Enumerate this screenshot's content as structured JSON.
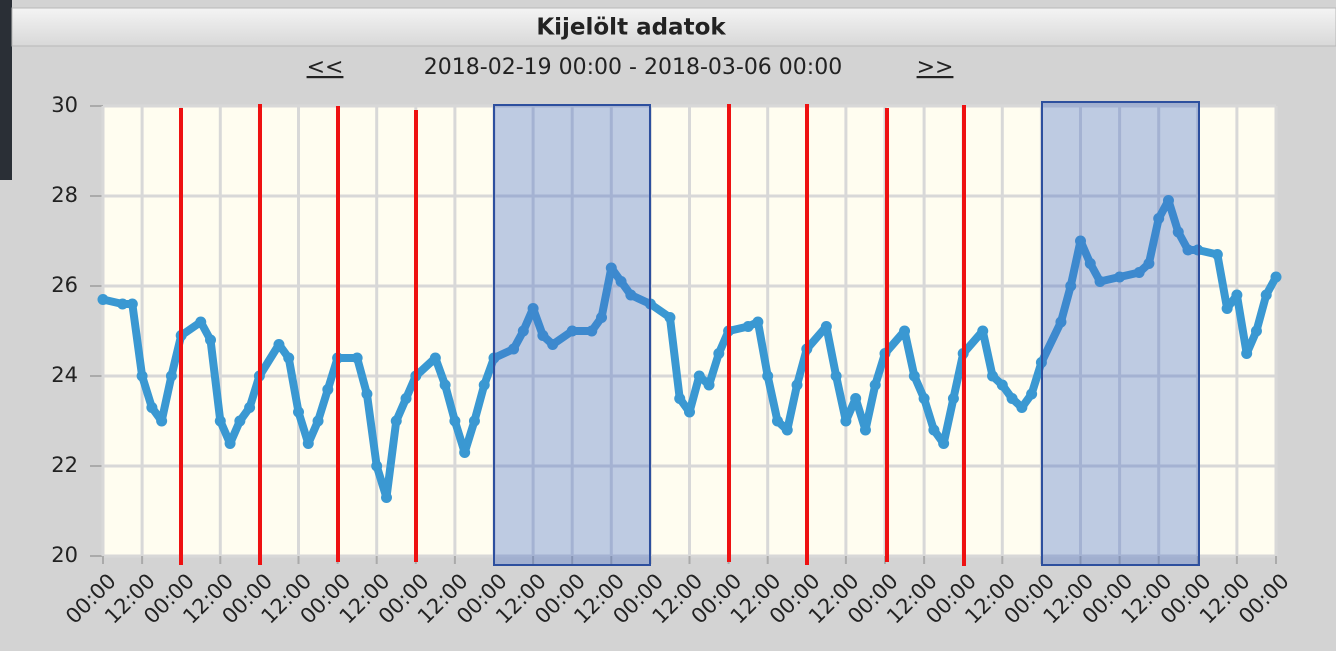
{
  "chart_data": {
    "type": "line",
    "title": "Kijelölt adatok",
    "nav_prev": "<<",
    "subtitle": "2018-02-19 00:00 - 2018-03-06 00:00",
    "nav_next": ">>",
    "color": "#3a98d2",
    "grid": true,
    "ylim": [
      20,
      30
    ],
    "yticks": [
      20,
      22,
      24,
      26,
      28,
      30
    ],
    "xlim": [
      0,
      360
    ],
    "xticks": [
      {
        "value": 0,
        "label": "00:00"
      },
      {
        "value": 12,
        "label": "12:00"
      },
      {
        "value": 24,
        "label": "00:00"
      },
      {
        "value": 36,
        "label": "12:00"
      },
      {
        "value": 48,
        "label": "00:00"
      },
      {
        "value": 60,
        "label": "12:00"
      },
      {
        "value": 72,
        "label": "00:00"
      },
      {
        "value": 84,
        "label": "12:00"
      },
      {
        "value": 96,
        "label": "00:00"
      },
      {
        "value": 108,
        "label": "12:00"
      },
      {
        "value": 120,
        "label": "00:00"
      },
      {
        "value": 132,
        "label": "12:00"
      },
      {
        "value": 144,
        "label": "00:00"
      },
      {
        "value": 156,
        "label": "12:00"
      },
      {
        "value": 168,
        "label": "00:00"
      },
      {
        "value": 180,
        "label": "12:00"
      },
      {
        "value": 192,
        "label": "00:00"
      },
      {
        "value": 204,
        "label": "12:00"
      },
      {
        "value": 216,
        "label": "00:00"
      },
      {
        "value": 228,
        "label": "12:00"
      },
      {
        "value": 240,
        "label": "00:00"
      },
      {
        "value": 252,
        "label": "12:00"
      },
      {
        "value": 264,
        "label": "00:00"
      },
      {
        "value": 276,
        "label": "12:00"
      },
      {
        "value": 288,
        "label": "00:00"
      },
      {
        "value": 300,
        "label": "12:00"
      },
      {
        "value": 312,
        "label": "00:00"
      },
      {
        "value": 324,
        "label": "12:00"
      },
      {
        "value": 336,
        "label": "00:00"
      },
      {
        "value": 348,
        "label": "12:00"
      },
      {
        "value": 360,
        "label": "00:00"
      }
    ],
    "x": [
      0,
      6,
      9,
      12,
      15,
      18,
      21,
      24,
      30,
      33,
      36,
      39,
      42,
      45,
      48,
      54,
      57,
      60,
      63,
      66,
      69,
      72,
      78,
      81,
      84,
      87,
      90,
      93,
      96,
      102,
      105,
      108,
      111,
      114,
      117,
      120,
      126,
      129,
      132,
      135,
      138,
      144,
      150,
      153,
      156,
      159,
      162,
      168,
      174,
      177,
      180,
      183,
      186,
      189,
      192,
      198,
      201,
      204,
      207,
      210,
      213,
      216,
      222,
      225,
      228,
      231,
      234,
      237,
      240,
      246,
      249,
      252,
      255,
      258,
      261,
      264,
      270,
      273,
      276,
      279,
      282,
      285,
      288,
      294,
      297,
      300,
      303,
      306,
      312,
      318,
      321,
      324,
      327,
      330,
      333,
      336,
      342,
      345,
      348,
      351,
      354,
      357,
      360
    ],
    "values": [
      25.7,
      25.6,
      25.6,
      24.0,
      23.3,
      23.0,
      24.0,
      24.9,
      25.2,
      24.8,
      23.0,
      22.5,
      23.0,
      23.3,
      24.0,
      24.7,
      24.4,
      23.2,
      22.5,
      23.0,
      23.7,
      24.4,
      24.4,
      23.6,
      22.0,
      21.3,
      23.0,
      23.5,
      24.0,
      24.4,
      23.8,
      23.0,
      22.3,
      23.0,
      23.8,
      24.4,
      24.6,
      25.0,
      25.5,
      24.9,
      24.7,
      25.0,
      25.0,
      25.3,
      26.4,
      26.1,
      25.8,
      25.6,
      25.3,
      23.5,
      23.2,
      24.0,
      23.8,
      24.5,
      25.0,
      25.1,
      25.2,
      24.0,
      23.0,
      22.8,
      23.8,
      24.6,
      25.1,
      24.0,
      23.0,
      23.5,
      22.8,
      23.8,
      24.5,
      25.0,
      24.0,
      23.5,
      22.8,
      22.5,
      23.5,
      24.5,
      25.0,
      24.0,
      23.8,
      23.5,
      23.3,
      23.6,
      24.3,
      25.2,
      26.0,
      27.0,
      26.5,
      26.1,
      26.2,
      26.3,
      26.5,
      27.5,
      27.9,
      27.2,
      26.8,
      26.8,
      26.7,
      25.5,
      25.8,
      24.5,
      25.0,
      25.8,
      26.2
    ]
  }
}
